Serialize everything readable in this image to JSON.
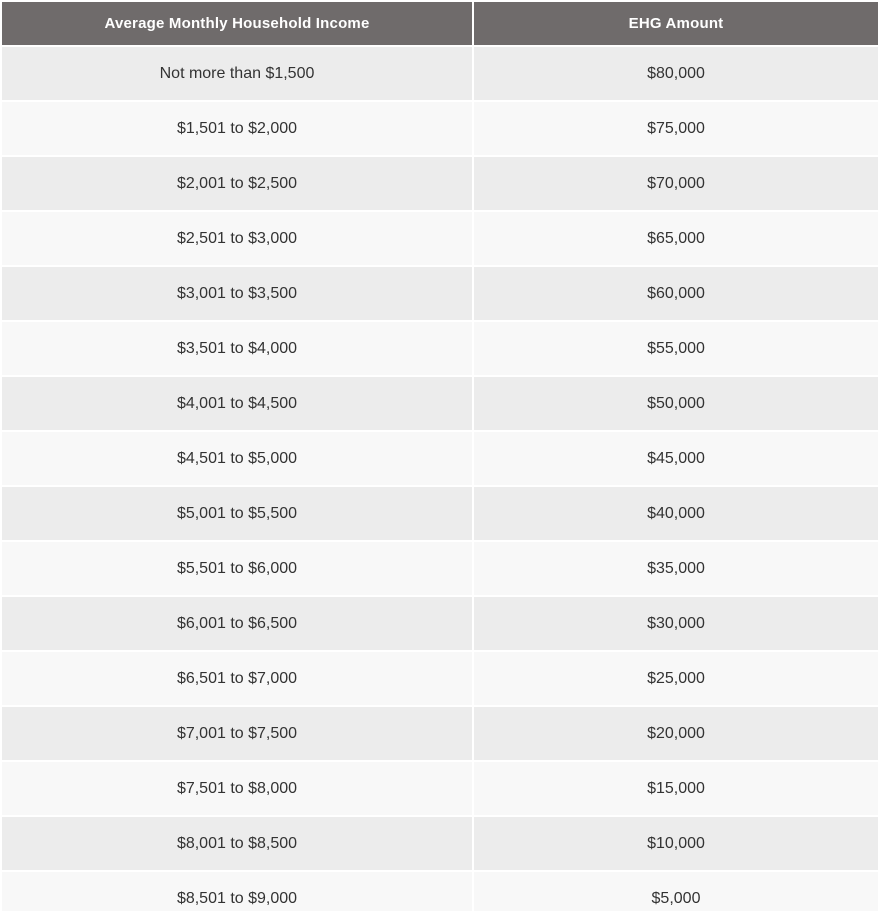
{
  "table": {
    "headers": [
      "Average Monthly Household Income",
      "EHG Amount"
    ],
    "rows": [
      {
        "income": "Not more than $1,500",
        "amount": "$80,000"
      },
      {
        "income": "$1,501 to $2,000",
        "amount": "$75,000"
      },
      {
        "income": "$2,001 to $2,500",
        "amount": "$70,000"
      },
      {
        "income": "$2,501 to $3,000",
        "amount": "$65,000"
      },
      {
        "income": "$3,001 to $3,500",
        "amount": "$60,000"
      },
      {
        "income": "$3,501 to $4,000",
        "amount": "$55,000"
      },
      {
        "income": "$4,001 to $4,500",
        "amount": "$50,000"
      },
      {
        "income": "$4,501 to $5,000",
        "amount": "$45,000"
      },
      {
        "income": "$5,001 to $5,500",
        "amount": "$40,000"
      },
      {
        "income": "$5,501 to $6,000",
        "amount": "$35,000"
      },
      {
        "income": "$6,001 to $6,500",
        "amount": "$30,000"
      },
      {
        "income": "$6,501 to $7,000",
        "amount": "$25,000"
      },
      {
        "income": "$7,001 to $7,500",
        "amount": "$20,000"
      },
      {
        "income": "$7,501 to $8,000",
        "amount": "$15,000"
      },
      {
        "income": "$8,001 to $8,500",
        "amount": "$10,000"
      },
      {
        "income": "$8,501 to $9,000",
        "amount": "$5,000"
      }
    ],
    "colors": {
      "header_bg": "#6f6b6b",
      "header_text": "#ffffff",
      "row_odd_bg": "#ececec",
      "row_even_bg": "#f8f8f8",
      "body_text": "#333333"
    }
  }
}
